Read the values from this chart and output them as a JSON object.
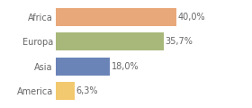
{
  "categories": [
    "America",
    "Asia",
    "Europa",
    "Africa"
  ],
  "values": [
    6.3,
    18.0,
    35.7,
    40.0
  ],
  "bar_colors": [
    "#f2c96e",
    "#6b84b8",
    "#a8b87a",
    "#e8a87a"
  ],
  "labels": [
    "6,3%",
    "18,0%",
    "35,7%",
    "40,0%"
  ],
  "xlim": [
    0,
    50
  ],
  "background_color": "#ffffff",
  "label_fontsize": 7.0,
  "tick_fontsize": 7.0,
  "bar_height": 0.72
}
